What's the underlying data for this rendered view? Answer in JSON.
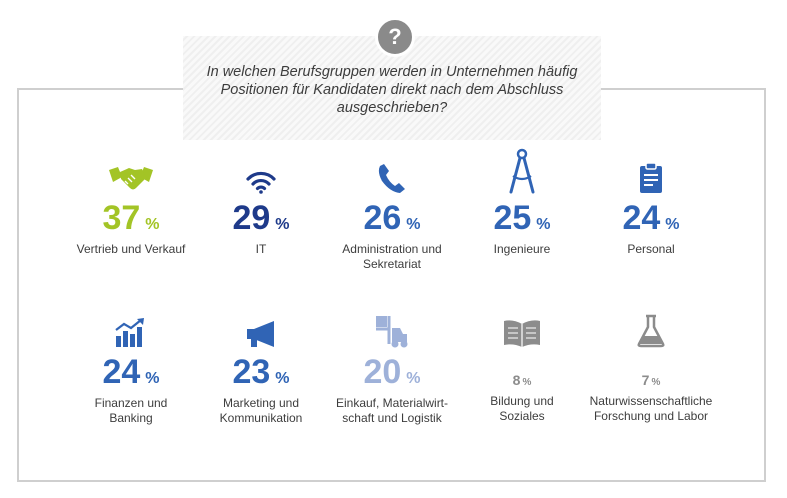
{
  "question": "In welchen Berufsgruppen werden in Unternehmen häufig Positionen für Kandidaten direkt nach dem Abschluss ausgeschrieben?",
  "question_mark": "?",
  "colors": {
    "green": "#a3c426",
    "navy": "#1e3a8a",
    "blue": "#3064b5",
    "light_blue": "#9eb1d9",
    "gray": "#8c8c8c"
  },
  "chart_data": {
    "type": "table",
    "unit": "%",
    "items": [
      {
        "label": "Vertrieb und Verkauf",
        "value": 37,
        "icon": "handshake-icon",
        "color": "#a3c426"
      },
      {
        "label": "IT",
        "value": 29,
        "icon": "wifi-icon",
        "color": "#1e3a8a"
      },
      {
        "label": "Administration und\nSekretariat",
        "value": 26,
        "icon": "phone-icon",
        "color": "#3064b5"
      },
      {
        "label": "Ingenieure",
        "value": 25,
        "icon": "compass-icon",
        "color": "#3064b5"
      },
      {
        "label": "Personal",
        "value": 24,
        "icon": "clipboard-icon",
        "color": "#3064b5"
      },
      {
        "label": "Finanzen und\nBanking",
        "value": 24,
        "icon": "growth-chart-icon",
        "color": "#3064b5"
      },
      {
        "label": "Marketing und\nKommunikation",
        "value": 23,
        "icon": "megaphone-icon",
        "color": "#3064b5"
      },
      {
        "label": "Einkauf, Materialwirt-\nschaft und Logistik",
        "value": 20,
        "icon": "forklift-icon",
        "color": "#9eb1d9"
      },
      {
        "label": "Bildung und\nSoziales",
        "value": 8,
        "icon": "book-icon",
        "color": "#8c8c8c"
      },
      {
        "label": "Naturwissenschaftliche\nForschung und Labor",
        "value": 7,
        "icon": "flask-icon",
        "color": "#8c8c8c"
      }
    ]
  }
}
